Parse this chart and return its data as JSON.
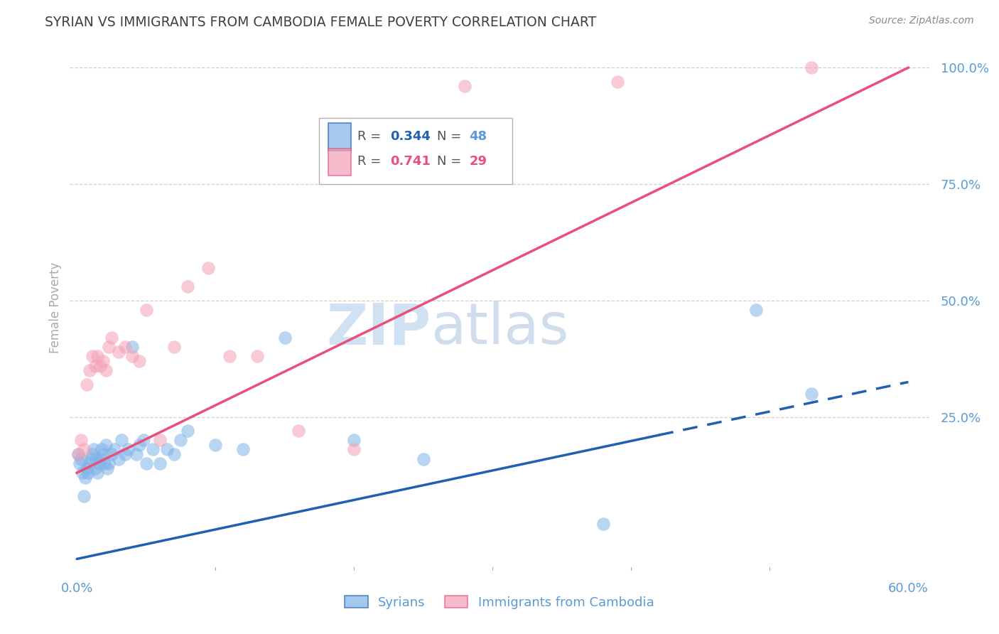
{
  "title": "SYRIAN VS IMMIGRANTS FROM CAMBODIA FEMALE POVERTY CORRELATION CHART",
  "source": "Source: ZipAtlas.com",
  "xlabel_ticks": [
    "0.0%",
    "",
    "",
    "",
    "",
    "",
    "60.0%"
  ],
  "xlabel_values": [
    0.0,
    0.1,
    0.2,
    0.3,
    0.4,
    0.5,
    0.6
  ],
  "ylabel": "Female Poverty",
  "ylabel_ticks": [
    "100.0%",
    "75.0%",
    "50.0%",
    "25.0%"
  ],
  "ylabel_values": [
    1.0,
    0.75,
    0.5,
    0.25
  ],
  "ylim": [
    -0.08,
    1.05
  ],
  "xlim": [
    -0.005,
    0.615
  ],
  "syrian_R": 0.344,
  "syrian_N": 48,
  "cambodia_R": 0.741,
  "cambodia_N": 29,
  "syrian_color": "#7fb3e8",
  "cambodia_color": "#f4a0b5",
  "trend_syrian_color": "#2060b0",
  "trend_cambodia_color": "#e8507a",
  "watermark_zip": "ZIP",
  "watermark_atlas": "atlas",
  "background_color": "#ffffff",
  "grid_color": "#d0d0d0",
  "axis_label_color": "#5b9bd5",
  "title_color": "#404040",
  "syrian_x": [
    0.001,
    0.002,
    0.003,
    0.004,
    0.005,
    0.006,
    0.007,
    0.008,
    0.009,
    0.01,
    0.011,
    0.012,
    0.013,
    0.014,
    0.015,
    0.016,
    0.017,
    0.018,
    0.019,
    0.02,
    0.021,
    0.022,
    0.023,
    0.025,
    0.027,
    0.03,
    0.032,
    0.035,
    0.037,
    0.04,
    0.043,
    0.045,
    0.048,
    0.05,
    0.055,
    0.06,
    0.065,
    0.07,
    0.075,
    0.08,
    0.1,
    0.12,
    0.15,
    0.2,
    0.25,
    0.38,
    0.49,
    0.53
  ],
  "syrian_y": [
    0.17,
    0.15,
    0.16,
    0.13,
    0.08,
    0.12,
    0.14,
    0.13,
    0.15,
    0.16,
    0.17,
    0.18,
    0.14,
    0.16,
    0.13,
    0.15,
    0.16,
    0.18,
    0.17,
    0.15,
    0.19,
    0.14,
    0.15,
    0.17,
    0.18,
    0.16,
    0.2,
    0.17,
    0.18,
    0.4,
    0.17,
    0.19,
    0.2,
    0.15,
    0.18,
    0.15,
    0.18,
    0.17,
    0.2,
    0.22,
    0.19,
    0.18,
    0.42,
    0.2,
    0.16,
    0.02,
    0.48,
    0.3
  ],
  "cambodia_x": [
    0.001,
    0.003,
    0.005,
    0.007,
    0.009,
    0.011,
    0.013,
    0.015,
    0.017,
    0.019,
    0.021,
    0.023,
    0.025,
    0.03,
    0.035,
    0.04,
    0.045,
    0.05,
    0.06,
    0.07,
    0.08,
    0.095,
    0.11,
    0.13,
    0.16,
    0.2,
    0.28,
    0.39,
    0.53
  ],
  "cambodia_y": [
    0.17,
    0.2,
    0.18,
    0.32,
    0.35,
    0.38,
    0.36,
    0.38,
    0.36,
    0.37,
    0.35,
    0.4,
    0.42,
    0.39,
    0.4,
    0.38,
    0.37,
    0.48,
    0.2,
    0.4,
    0.53,
    0.57,
    0.38,
    0.38,
    0.22,
    0.18,
    0.96,
    0.97,
    1.0
  ],
  "trend_syrian_x0": 0.0,
  "trend_syrian_y0": -0.055,
  "trend_syrian_x1": 0.6,
  "trend_syrian_y1": 0.325,
  "trend_syrian_solid_end": 0.42,
  "trend_cambodia_x0": 0.0,
  "trend_cambodia_y0": 0.13,
  "trend_cambodia_x1": 0.6,
  "trend_cambodia_y1": 1.0
}
